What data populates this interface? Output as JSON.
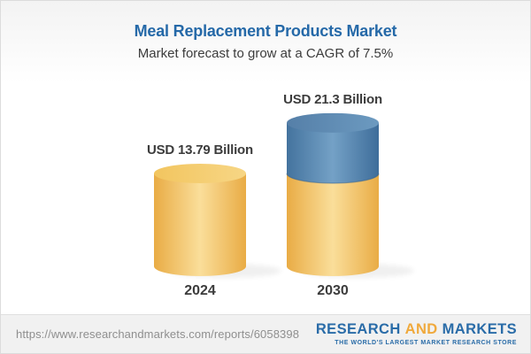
{
  "header": {
    "title": "Meal Replacement Products Market",
    "subtitle": "Market forecast to grow at a CAGR of 7.5%"
  },
  "chart_data": {
    "type": "bar",
    "variant": "3d-cylinder",
    "title": "Meal Replacement Products Market",
    "subtitle": "Market forecast to grow at a CAGR of 7.5%",
    "unit": "USD Billion",
    "cagr_percent": 7.5,
    "categories": [
      "2024",
      "2030"
    ],
    "values": [
      13.79,
      21.3
    ],
    "xlabel": "",
    "ylabel": "",
    "grid": false,
    "legend": "none",
    "bars": [
      {
        "category": "2024",
        "total": 13.79,
        "label": "USD 13.79 Billion",
        "segments": [
          {
            "value": 13.79,
            "color": "gold"
          }
        ]
      },
      {
        "category": "2030",
        "total": 21.3,
        "label": "USD 21.3 Billion",
        "segments": [
          {
            "value": 13.79,
            "color": "gold"
          },
          {
            "value": 7.51,
            "color": "blue"
          }
        ]
      }
    ],
    "palette": {
      "gold": {
        "body_gradient": "goldBody",
        "top_gradient": "goldTop",
        "edge": "#d89b30"
      },
      "blue": {
        "body_gradient": "blueBody",
        "top_gradient": "blueTop",
        "edge": "#2f5e8c"
      }
    }
  },
  "footer": {
    "url": "https://www.researchandmarkets.com/reports/6058398",
    "logo": {
      "word1": "RESEARCH",
      "word2": "AND",
      "word3": "MARKETS",
      "tagline": "THE WORLD'S LARGEST MARKET RESEARCH STORE"
    }
  },
  "colors": {
    "title_blue": "#2569a8",
    "text_dark": "#3c3c3c",
    "url_gray": "#8f8f8f",
    "logo_blue": "#2a6ca8",
    "logo_orange": "#f0a93c",
    "gold_body_left": "#e9ac45",
    "gold_body_mid": "#fade9a",
    "gold_body_right": "#e9ac45",
    "gold_top_left": "#f2c55f",
    "gold_top_right": "#f7d685",
    "blue_body_left": "#44739e",
    "blue_body_mid": "#74a1c6",
    "blue_body_right": "#3e6d9a",
    "blue_top_left": "#557fa8",
    "blue_top_right": "#6c9ac0"
  }
}
